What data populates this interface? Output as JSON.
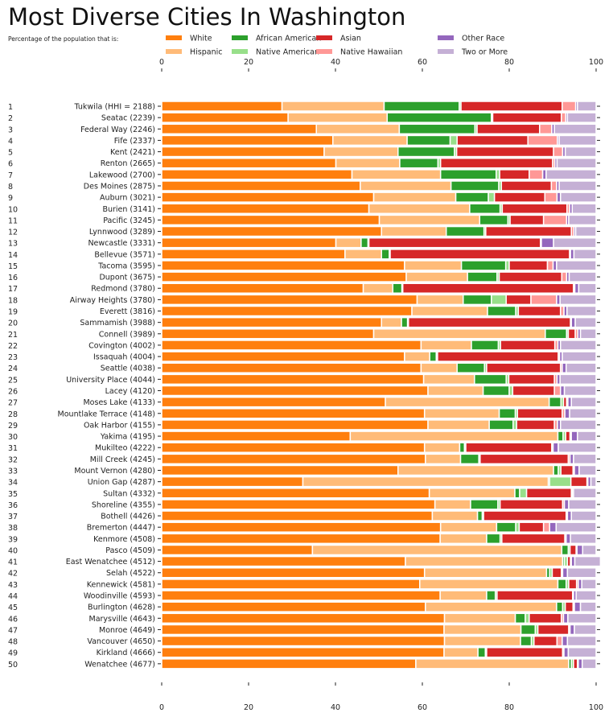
{
  "chart_data": {
    "type": "bar",
    "orientation": "horizontal",
    "stacked": true,
    "title": "Most Diverse Cities In Washington",
    "subtitle": "Percentage of the population that is:",
    "xlim": [
      0,
      100
    ],
    "xticks": [
      0,
      20,
      40,
      60,
      80,
      100
    ],
    "grid": false,
    "legend_placement": "top",
    "series_names": [
      "White",
      "Hispanic",
      "African American",
      "Native American",
      "Asian",
      "Native Hawaiian",
      "Other Race",
      "Two or More"
    ],
    "colors": [
      "#ff7f0e",
      "#ffbb78",
      "#2ca02c",
      "#98df8a",
      "#d62728",
      "#ff9896",
      "#9467bd",
      "#c5b0d5"
    ],
    "rows": [
      {
        "rank": "1",
        "label": "Tukwila (HHI = 2188)",
        "values": [
          27.7,
          23.5,
          17.3,
          0.4,
          23.3,
          3.1,
          0.4,
          4.3
        ]
      },
      {
        "rank": "2",
        "label": "Seatac (2239)",
        "values": [
          29.1,
          22.8,
          24.0,
          0.3,
          15.8,
          1.0,
          0.4,
          6.6
        ]
      },
      {
        "rank": "3",
        "label": "Federal Way (2246)",
        "values": [
          35.6,
          19.1,
          17.4,
          0.5,
          14.4,
          2.8,
          0.6,
          9.6
        ]
      },
      {
        "rank": "4",
        "label": "Fife (2337)",
        "values": [
          39.4,
          17.1,
          9.9,
          1.6,
          16.3,
          6.8,
          0.4,
          8.5
        ]
      },
      {
        "rank": "5",
        "label": "Kent (2421)",
        "values": [
          37.4,
          17.0,
          13.0,
          0.5,
          22.3,
          2.1,
          0.6,
          7.1
        ]
      },
      {
        "rank": "6",
        "label": "Renton (2665)",
        "values": [
          40.1,
          14.7,
          8.8,
          0.6,
          25.8,
          0.5,
          0.5,
          9.0
        ]
      },
      {
        "rank": "7",
        "label": "Lakewood (2700)",
        "values": [
          43.8,
          20.4,
          12.8,
          0.8,
          6.8,
          3.1,
          0.8,
          11.5
        ]
      },
      {
        "rank": "8",
        "label": "Des Moines (2875)",
        "values": [
          45.7,
          20.9,
          11.0,
          0.6,
          11.5,
          1.2,
          0.6,
          8.5
        ]
      },
      {
        "rank": "9",
        "label": "Auburn (3021)",
        "values": [
          48.8,
          18.9,
          7.5,
          1.4,
          11.6,
          2.8,
          0.8,
          8.2
        ]
      },
      {
        "rank": "10",
        "label": "Burien (3141)",
        "values": [
          47.7,
          23.2,
          7.0,
          0.5,
          14.9,
          0.6,
          0.6,
          5.5
        ]
      },
      {
        "rank": "11",
        "label": "Pacific (3245)",
        "values": [
          50.1,
          23.1,
          6.5,
          0.5,
          7.7,
          5.3,
          0.5,
          6.3
        ]
      },
      {
        "rank": "12",
        "label": "Lynnwood (3289)",
        "values": [
          50.6,
          14.9,
          8.7,
          0.4,
          19.7,
          0.6,
          0.4,
          4.7
        ]
      },
      {
        "rank": "13",
        "label": "Newcastle (3331)",
        "values": [
          40.1,
          5.8,
          1.6,
          0.2,
          39.5,
          0.2,
          2.8,
          9.8
        ]
      },
      {
        "rank": "14",
        "label": "Bellevue (3571)",
        "values": [
          42.2,
          8.4,
          1.8,
          0.2,
          41.3,
          0.2,
          0.8,
          5.1
        ]
      },
      {
        "rank": "15",
        "label": "Tacoma (3595)",
        "values": [
          55.9,
          13.1,
          10.2,
          0.8,
          8.8,
          1.3,
          0.8,
          9.1
        ]
      },
      {
        "rank": "16",
        "label": "Dupont (3675)",
        "values": [
          56.3,
          14.1,
          6.8,
          0.5,
          14.4,
          1.1,
          0.6,
          6.2
        ]
      },
      {
        "rank": "17",
        "label": "Redmond (3780)",
        "values": [
          46.4,
          6.8,
          2.1,
          0.2,
          39.3,
          0.3,
          0.9,
          4.0
        ]
      },
      {
        "rank": "18",
        "label": "Airway Heights (3780)",
        "values": [
          58.8,
          10.6,
          6.5,
          3.4,
          5.7,
          5.9,
          0.8,
          8.3
        ]
      },
      {
        "rank": "19",
        "label": "Everett (3816)",
        "values": [
          57.6,
          17.4,
          6.5,
          0.6,
          9.7,
          0.8,
          0.7,
          6.7
        ]
      },
      {
        "rank": "20",
        "label": "Sammamish (3988)",
        "values": [
          50.6,
          4.6,
          1.4,
          0.2,
          37.3,
          0.2,
          0.9,
          4.8
        ]
      },
      {
        "rank": "21",
        "label": "Connell (3989)",
        "values": [
          48.8,
          39.5,
          4.9,
          0.4,
          1.6,
          0.6,
          0.6,
          3.6
        ]
      },
      {
        "rank": "22",
        "label": "Covington (4002)",
        "values": [
          59.7,
          11.6,
          6.2,
          0.5,
          12.5,
          0.7,
          0.6,
          8.2
        ]
      },
      {
        "rank": "23",
        "label": "Issaquah (4004)",
        "values": [
          55.9,
          5.8,
          1.5,
          0.3,
          27.8,
          0.3,
          0.6,
          7.8
        ]
      },
      {
        "rank": "24",
        "label": "Seattle (4038)",
        "values": [
          59.7,
          8.3,
          6.3,
          0.5,
          17.0,
          0.4,
          0.9,
          6.9
        ]
      },
      {
        "rank": "25",
        "label": "University Place (4044)",
        "values": [
          60.3,
          11.7,
          7.3,
          0.6,
          10.5,
          0.6,
          0.7,
          8.3
        ]
      },
      {
        "rank": "26",
        "label": "Lacey (4120)",
        "values": [
          61.3,
          12.7,
          6.0,
          0.8,
          9.6,
          1.4,
          0.9,
          7.3
        ]
      },
      {
        "rank": "27",
        "label": "Moses Lake (4133)",
        "values": [
          51.5,
          37.7,
          2.7,
          0.6,
          0.7,
          0.3,
          0.8,
          5.7
        ]
      },
      {
        "rank": "28",
        "label": "Mountlake Terrace (4148)",
        "values": [
          60.5,
          17.2,
          3.7,
          0.5,
          10.3,
          0.6,
          1.1,
          6.1
        ]
      },
      {
        "rank": "29",
        "label": "Oak Harbor (4155)",
        "values": [
          61.3,
          14.1,
          5.5,
          0.8,
          8.7,
          0.7,
          0.7,
          8.2
        ]
      },
      {
        "rank": "30",
        "label": "Yakima (4195)",
        "values": [
          43.4,
          47.8,
          1.2,
          0.6,
          1.0,
          0.3,
          1.4,
          4.3
        ]
      },
      {
        "rank": "31",
        "label": "Mukilteo (4222)",
        "values": [
          60.5,
          8.1,
          1.1,
          0.3,
          19.8,
          0.3,
          1.2,
          8.7
        ]
      },
      {
        "rank": "32",
        "label": "Mill Creek (4245)",
        "values": [
          60.7,
          8.1,
          4.2,
          0.3,
          20.3,
          0.4,
          0.8,
          5.2
        ]
      },
      {
        "rank": "33",
        "label": "Mount Vernon (4280)",
        "values": [
          54.4,
          35.8,
          1.1,
          0.6,
          2.8,
          0.3,
          1.1,
          3.9
        ]
      },
      {
        "rank": "34",
        "label": "Union Gap (4287)",
        "values": [
          32.5,
          56.5,
          0.3,
          4.9,
          3.7,
          0.2,
          0.7,
          1.2
        ]
      },
      {
        "rank": "35",
        "label": "Sultan (4332)",
        "values": [
          61.6,
          19.7,
          1.1,
          1.6,
          10.3,
          0.2,
          0.3,
          5.2
        ]
      },
      {
        "rank": "36",
        "label": "Shoreline (4355)",
        "values": [
          62.9,
          8.2,
          6.3,
          0.5,
          14.4,
          0.4,
          1.0,
          6.3
        ]
      },
      {
        "rank": "37",
        "label": "Bothell (4426)",
        "values": [
          62.3,
          10.4,
          1.1,
          0.3,
          19.0,
          0.3,
          0.9,
          5.7
        ]
      },
      {
        "rank": "38",
        "label": "Bremerton (4447)",
        "values": [
          64.2,
          12.9,
          4.4,
          0.8,
          5.6,
          1.4,
          1.5,
          9.2
        ]
      },
      {
        "rank": "39",
        "label": "Kenmore (4508)",
        "values": [
          64.1,
          10.7,
          3.1,
          0.4,
          14.5,
          0.3,
          1.0,
          5.9
        ]
      },
      {
        "rank": "40",
        "label": "Pasco (4509)",
        "values": [
          34.7,
          57.4,
          1.5,
          0.4,
          1.4,
          0.2,
          1.3,
          3.1
        ]
      },
      {
        "rank": "41",
        "label": "East Wenatchee (4512)",
        "values": [
          56.1,
          36.2,
          0.4,
          0.7,
          0.7,
          0.2,
          0.8,
          5.9
        ]
      },
      {
        "rank": "42",
        "label": "Selah (4522)",
        "values": [
          60.5,
          28.1,
          0.7,
          0.6,
          2.1,
          0.3,
          1.1,
          6.6
        ]
      },
      {
        "rank": "43",
        "label": "Kennewick (4581)",
        "values": [
          59.4,
          31.8,
          1.9,
          0.6,
          1.8,
          0.4,
          0.8,
          3.3
        ]
      },
      {
        "rank": "44",
        "label": "Woodinville (4593)",
        "values": [
          64.1,
          10.7,
          2.0,
          0.4,
          17.4,
          0.2,
          0.6,
          4.6
        ]
      },
      {
        "rank": "45",
        "label": "Burlington (4628)",
        "values": [
          60.7,
          30.2,
          1.4,
          0.6,
          1.8,
          0.3,
          1.4,
          3.6
        ]
      },
      {
        "rank": "46",
        "label": "Marysville (4643)",
        "values": [
          65.1,
          16.3,
          2.3,
          0.9,
          7.4,
          0.5,
          1.0,
          6.5
        ]
      },
      {
        "rank": "47",
        "label": "Monroe (4649)",
        "values": [
          65.0,
          17.7,
          3.3,
          0.6,
          7.1,
          0.3,
          1.0,
          5.0
        ]
      },
      {
        "rank": "48",
        "label": "Vancouver (4650)",
        "values": [
          65.1,
          17.5,
          2.5,
          0.6,
          5.3,
          1.2,
          1.2,
          6.6
        ]
      },
      {
        "rank": "49",
        "label": "Kirkland (4666)",
        "values": [
          65.0,
          7.8,
          1.7,
          0.3,
          17.5,
          0.3,
          1.0,
          6.4
        ]
      },
      {
        "rank": "50",
        "label": "Wenatchee (4677)",
        "values": [
          58.5,
          35.2,
          0.6,
          0.5,
          0.9,
          0.2,
          0.9,
          3.2
        ]
      }
    ]
  }
}
